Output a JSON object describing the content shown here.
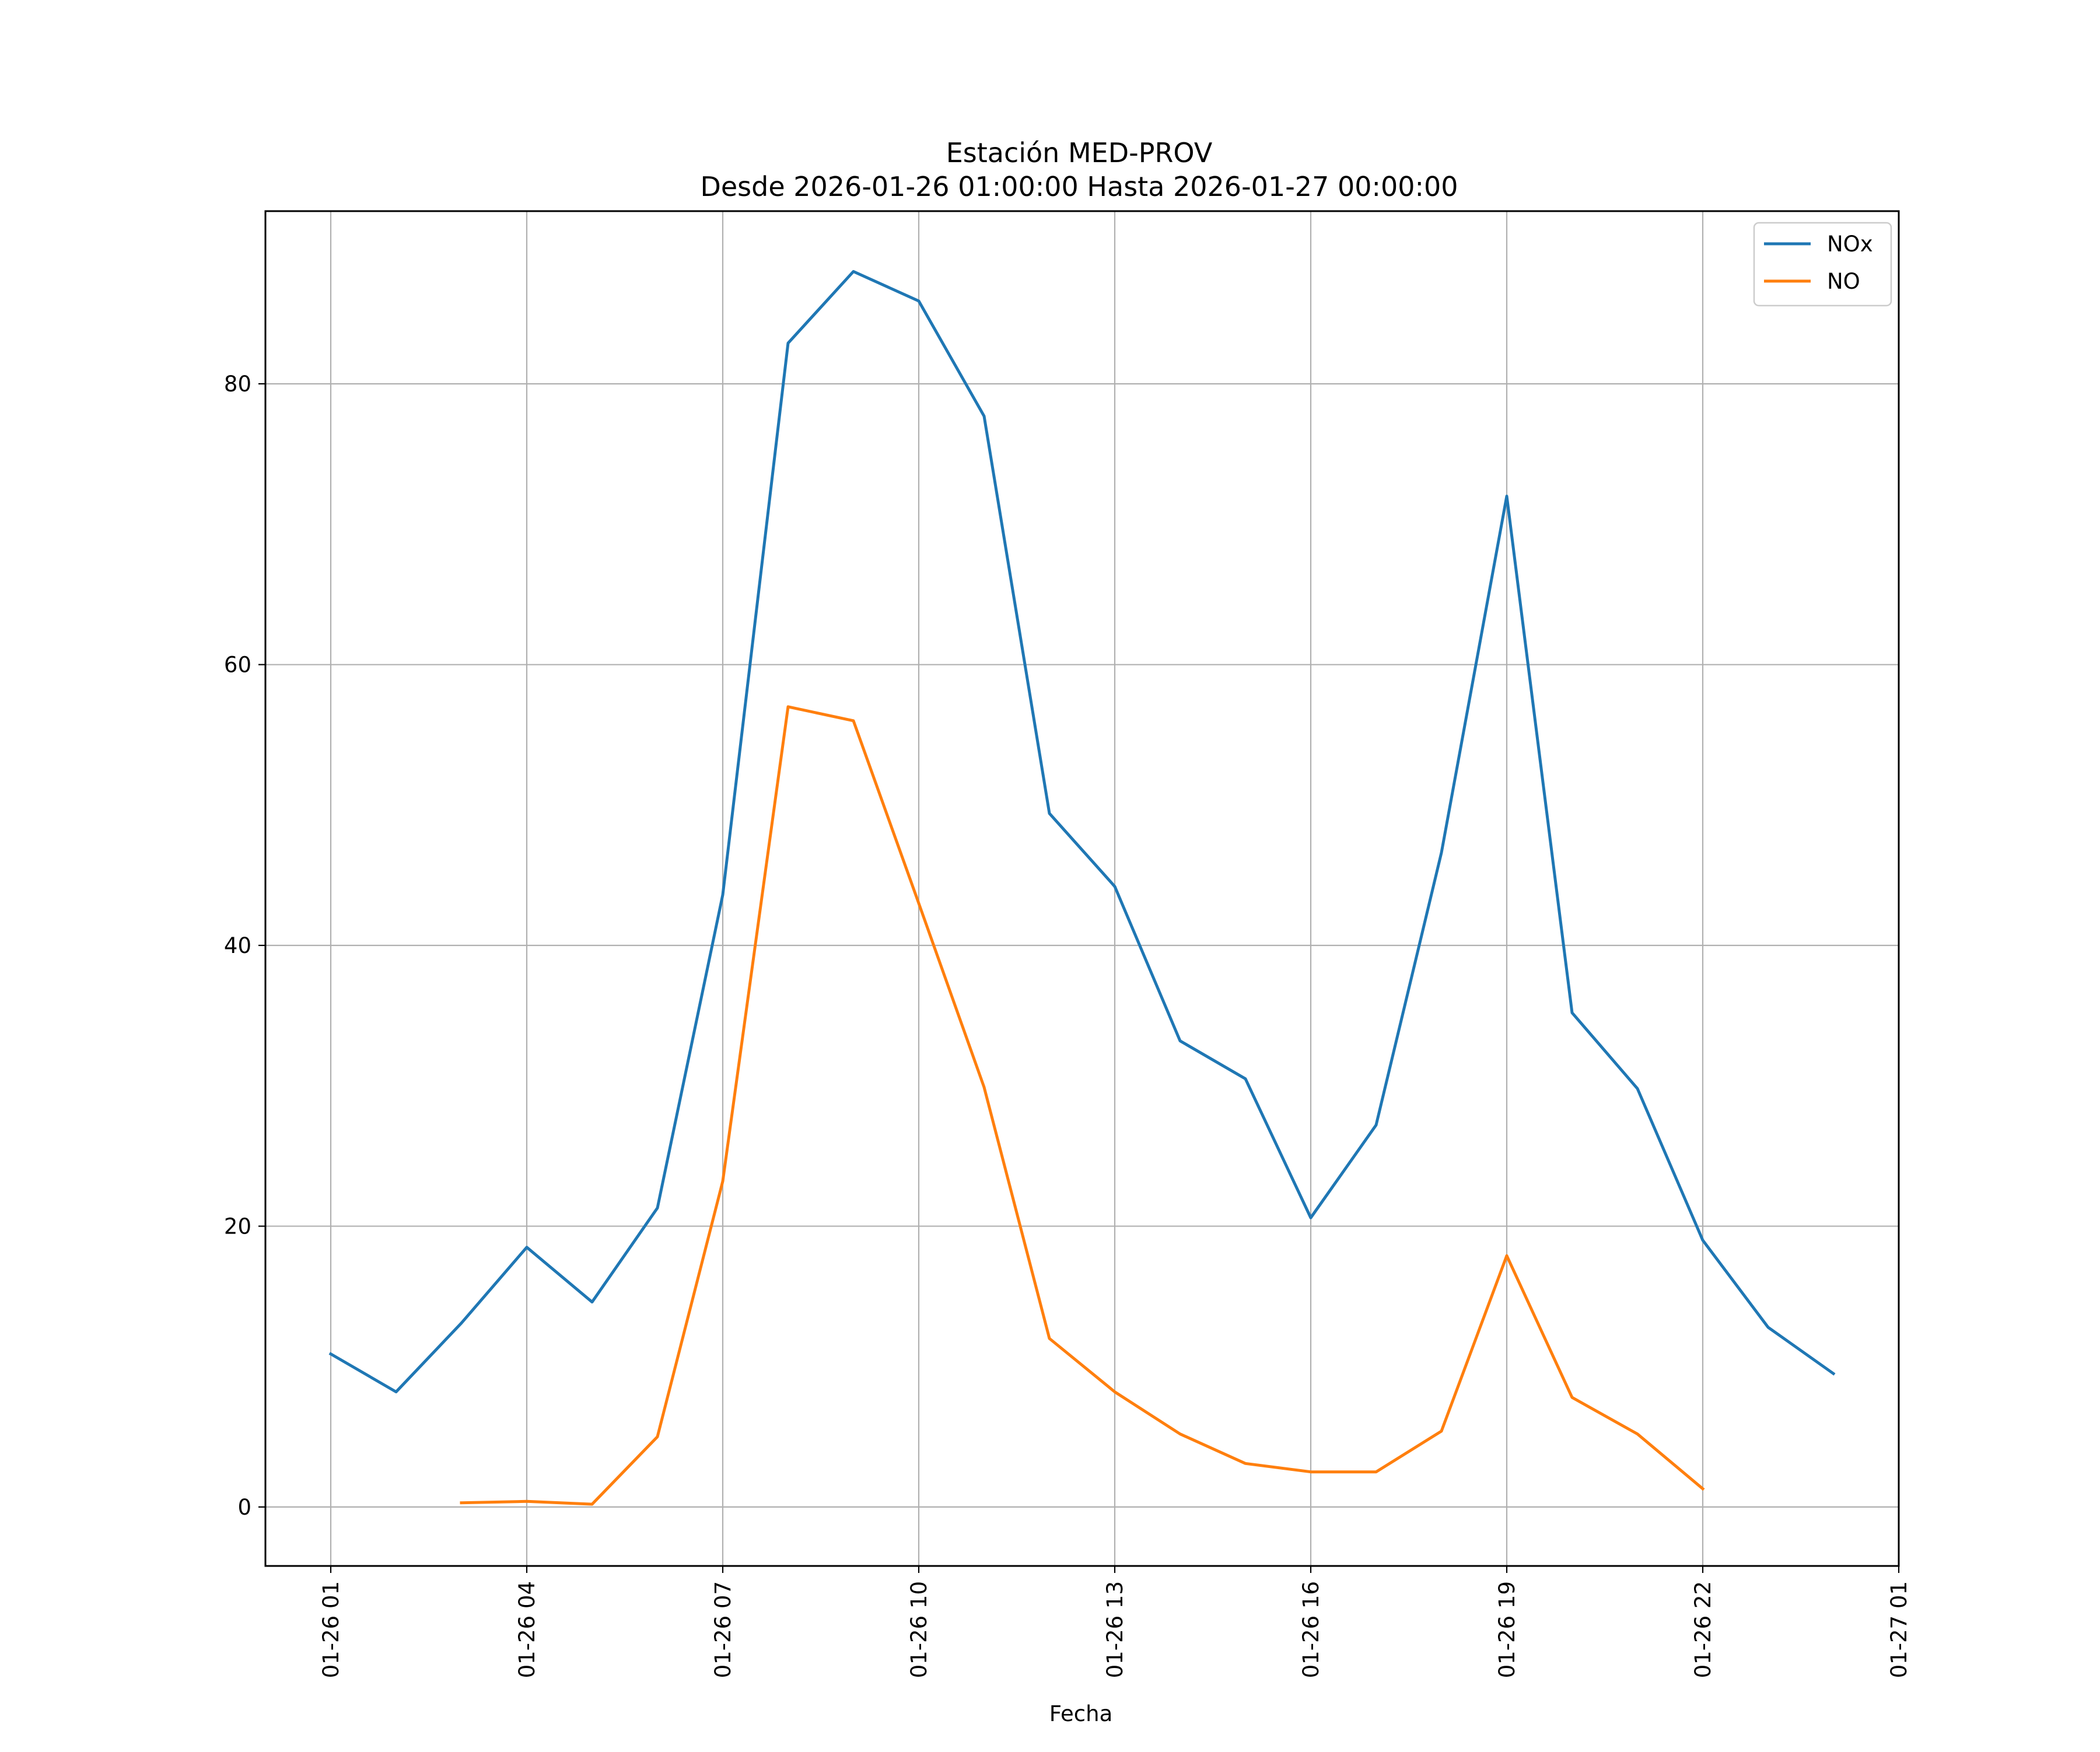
{
  "chart_data": {
    "type": "line",
    "title": [
      "Estación MED-PROV",
      "Desde 2026-01-26 01:00:00 Hasta 2026-01-27 00:00:00"
    ],
    "xlabel": "Fecha",
    "ylabel": "",
    "x_start": "2026-01-26 01:00",
    "x": [
      "01-26 01",
      "01-26 02",
      "01-26 03",
      "01-26 04",
      "01-26 05",
      "01-26 06",
      "01-26 07",
      "01-26 08",
      "01-26 09",
      "01-26 10",
      "01-26 11",
      "01-26 12",
      "01-26 13",
      "01-26 14",
      "01-26 15",
      "01-26 16",
      "01-26 17",
      "01-26 18",
      "01-26 19",
      "01-26 20",
      "01-26 21",
      "01-26 22",
      "01-26 23",
      "01-27 00"
    ],
    "x_ticks": [
      "01-26 01",
      "01-26 04",
      "01-26 07",
      "01-26 10",
      "01-26 13",
      "01-26 16",
      "01-26 19",
      "01-26 22",
      "01-27 01"
    ],
    "xlim": [
      "01-26 00",
      "01-27 01"
    ],
    "ylim": [
      -4.2,
      92.3
    ],
    "y_ticks": [
      0,
      20,
      40,
      60,
      80
    ],
    "grid": true,
    "legend_position": "top-right",
    "series": [
      {
        "name": "NOx",
        "color": "#1f77b4",
        "values": [
          10.9,
          8.2,
          13.1,
          18.5,
          14.6,
          21.3,
          43.6,
          82.9,
          88.0,
          85.9,
          77.7,
          49.4,
          44.2,
          33.2,
          30.5,
          20.6,
          27.2,
          46.6,
          72.0,
          35.2,
          29.8,
          19.0,
          12.8,
          9.5
        ]
      },
      {
        "name": "NO",
        "color": "#ff7f0e",
        "values": [
          null,
          null,
          0.3,
          0.4,
          0.2,
          5.0,
          23.2,
          57.0,
          56.0,
          43.0,
          29.9,
          12.0,
          8.2,
          5.2,
          3.1,
          2.5,
          2.5,
          5.4,
          17.9,
          7.8,
          5.2,
          1.3,
          null,
          null
        ]
      }
    ]
  }
}
